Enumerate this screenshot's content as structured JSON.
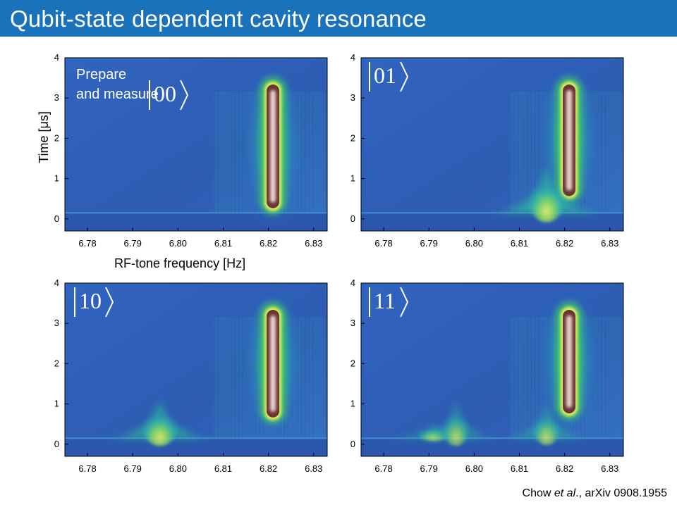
{
  "slide": {
    "title": "Qubit-state dependent cavity resonance",
    "citation": {
      "author": "Chow ",
      "etal": "et al",
      "rest": "., arXiv 0908.1955"
    }
  },
  "colors": {
    "title_bar": "#1a72bb",
    "background_map": "#2f5fb6",
    "glow_green": "#3fc86a",
    "peak_yellow": "#e9f060",
    "peak_core": "#7b3c3c",
    "peak_center": "#f3e0dc"
  },
  "chart_data": [
    {
      "type": "heatmap",
      "panel": "top-left",
      "state_label": "00",
      "annotation": [
        "Prepare",
        "and measure"
      ],
      "xlabel": "RF-tone frequency [Hz]",
      "ylabel": "Time [μs]",
      "xlim": [
        6.775,
        6.833
      ],
      "ylim": [
        -0.3,
        4
      ],
      "xticks": [
        "6.78",
        "6.79",
        "6.80",
        "6.81",
        "6.82",
        "6.83"
      ],
      "yticks": [
        "0",
        "1",
        "2",
        "3",
        "4"
      ],
      "pulse_window_us": [
        0.15,
        3.15
      ],
      "features": [
        {
          "kind": "main",
          "freq": 6.821,
          "t_start": 0.3,
          "t_end": 3.3,
          "peak": 1.0
        }
      ]
    },
    {
      "type": "heatmap",
      "panel": "top-right",
      "state_label": "01",
      "xlim": [
        6.775,
        6.833
      ],
      "ylim": [
        -0.3,
        4
      ],
      "xticks": [
        "6.78",
        "6.79",
        "6.80",
        "6.81",
        "6.82",
        "6.83"
      ],
      "yticks": [
        "0",
        "1",
        "2",
        "3",
        "4"
      ],
      "pulse_window_us": [
        0.15,
        3.15
      ],
      "features": [
        {
          "kind": "main",
          "freq": 6.821,
          "t_start": 0.6,
          "t_end": 3.3,
          "peak": 1.0
        },
        {
          "kind": "transient",
          "freq": 6.816,
          "t_start": 0.15,
          "t_end": 1.3,
          "peak": 0.8
        }
      ]
    },
    {
      "type": "heatmap",
      "panel": "bottom-left",
      "state_label": "10",
      "xlim": [
        6.775,
        6.833
      ],
      "ylim": [
        -0.3,
        4
      ],
      "xticks": [
        "6.78",
        "6.79",
        "6.80",
        "6.81",
        "6.82",
        "6.83"
      ],
      "yticks": [
        "0",
        "1",
        "2",
        "3",
        "4"
      ],
      "pulse_window_us": [
        0.15,
        3.15
      ],
      "features": [
        {
          "kind": "main",
          "freq": 6.821,
          "t_start": 0.7,
          "t_end": 3.3,
          "peak": 1.0
        },
        {
          "kind": "transient",
          "freq": 6.796,
          "t_start": 0.15,
          "t_end": 1.1,
          "peak": 0.75
        }
      ]
    },
    {
      "type": "heatmap",
      "panel": "bottom-right",
      "state_label": "11",
      "xlim": [
        6.775,
        6.833
      ],
      "ylim": [
        -0.3,
        4
      ],
      "xticks": [
        "6.78",
        "6.79",
        "6.80",
        "6.81",
        "6.82",
        "6.83"
      ],
      "yticks": [
        "0",
        "1",
        "2",
        "3",
        "4"
      ],
      "pulse_window_us": [
        0.15,
        3.15
      ],
      "features": [
        {
          "kind": "main",
          "freq": 6.821,
          "t_start": 0.8,
          "t_end": 3.3,
          "peak": 1.0
        },
        {
          "kind": "transient",
          "freq": 6.791,
          "t_start": 0.15,
          "t_end": 0.5,
          "peak": 0.55
        },
        {
          "kind": "transient",
          "freq": 6.796,
          "t_start": 0.15,
          "t_end": 1.1,
          "peak": 0.4
        },
        {
          "kind": "transient",
          "freq": 6.816,
          "t_start": 0.15,
          "t_end": 1.0,
          "peak": 0.45
        }
      ]
    }
  ]
}
